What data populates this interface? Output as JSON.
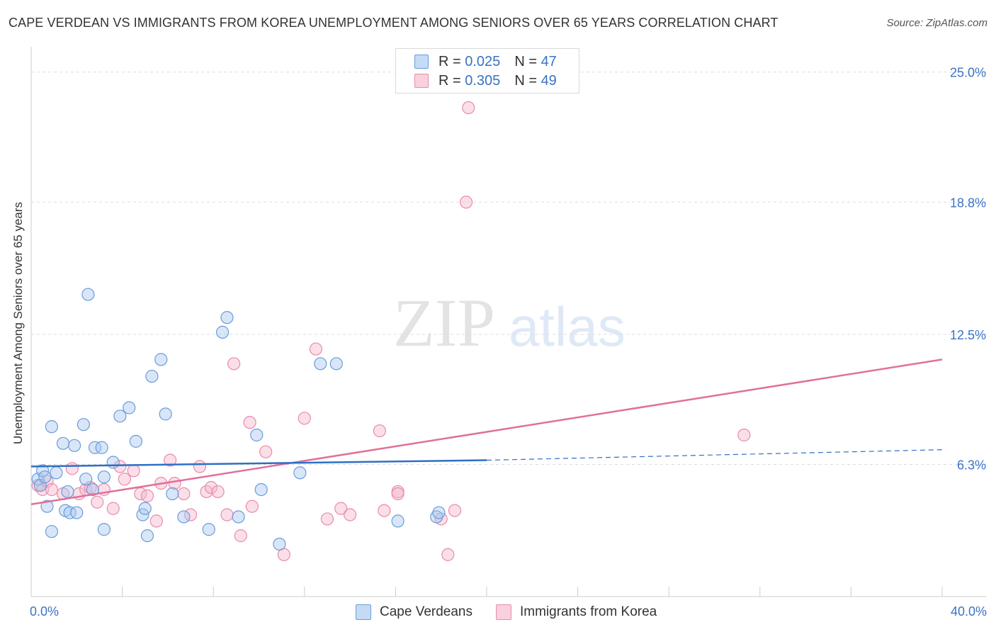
{
  "title": "CAPE VERDEAN VS IMMIGRANTS FROM KOREA UNEMPLOYMENT AMONG SENIORS OVER 65 YEARS CORRELATION CHART",
  "source": "Source: ZipAtlas.com",
  "watermark": {
    "zip": "ZIP",
    "atlas": "atlas"
  },
  "colors": {
    "blue_fill": "#a9c8ee",
    "blue_stroke": "#6a9cdb",
    "blue_line": "#2f6fc4",
    "pink_fill": "#f5b8cb",
    "pink_stroke": "#e98bab",
    "pink_line": "#e0709a",
    "tick_label": "#3b73c4",
    "grid": "#dddddd"
  },
  "legend": {
    "rows": [
      {
        "r_label": "R =",
        "r_value": "0.025",
        "n_label": "N =",
        "n_value": "47"
      },
      {
        "r_label": "R =",
        "r_value": "0.305",
        "n_label": "N =",
        "n_value": "49"
      }
    ]
  },
  "chart_data": {
    "type": "scatter",
    "xlabel": "",
    "ylabel": "Unemployment Among Seniors over 65 years",
    "xlim": [
      0,
      40
    ],
    "ylim": [
      0,
      25.8
    ],
    "x_tick_labels": [
      "0.0%",
      "40.0%"
    ],
    "y_ticks": [
      6.3,
      12.5,
      18.8,
      25.0
    ],
    "y_tick_labels": [
      "6.3%",
      "12.5%",
      "18.8%",
      "25.0%"
    ],
    "legend_position": "top-center",
    "series": [
      {
        "name": "Cape Verdeans",
        "r": 0.025,
        "n": 47,
        "trend": {
          "x0": 0,
          "y0": 6.2,
          "x1": 20,
          "y1": 6.5,
          "x_dash_end": 40,
          "y_dash_end": 7.0
        },
        "points": [
          [
            0.3,
            5.6
          ],
          [
            0.4,
            5.3
          ],
          [
            0.5,
            6.0
          ],
          [
            0.6,
            5.7
          ],
          [
            0.7,
            4.3
          ],
          [
            0.9,
            8.1
          ],
          [
            0.9,
            3.1
          ],
          [
            1.1,
            5.9
          ],
          [
            1.4,
            7.3
          ],
          [
            1.5,
            4.1
          ],
          [
            1.6,
            5.0
          ],
          [
            1.7,
            4.0
          ],
          [
            1.9,
            7.2
          ],
          [
            2.0,
            4.0
          ],
          [
            2.3,
            8.2
          ],
          [
            2.4,
            5.6
          ],
          [
            2.5,
            14.4
          ],
          [
            2.7,
            5.1
          ],
          [
            2.8,
            7.1
          ],
          [
            3.1,
            7.1
          ],
          [
            3.2,
            3.2
          ],
          [
            3.2,
            5.7
          ],
          [
            3.6,
            6.4
          ],
          [
            3.9,
            8.6
          ],
          [
            4.3,
            9.0
          ],
          [
            4.6,
            7.4
          ],
          [
            4.9,
            3.9
          ],
          [
            5.0,
            4.2
          ],
          [
            5.1,
            2.9
          ],
          [
            5.3,
            10.5
          ],
          [
            5.7,
            11.3
          ],
          [
            5.9,
            8.7
          ],
          [
            6.2,
            4.9
          ],
          [
            6.7,
            3.8
          ],
          [
            7.8,
            3.2
          ],
          [
            8.4,
            12.6
          ],
          [
            8.6,
            13.3
          ],
          [
            9.1,
            3.8
          ],
          [
            9.9,
            7.7
          ],
          [
            10.1,
            5.1
          ],
          [
            10.9,
            2.5
          ],
          [
            11.8,
            5.9
          ],
          [
            12.7,
            11.1
          ],
          [
            13.4,
            11.1
          ],
          [
            16.1,
            3.6
          ],
          [
            17.8,
            3.8
          ],
          [
            17.9,
            4.0
          ]
        ]
      },
      {
        "name": "Immigrants from Korea",
        "r": 0.305,
        "n": 49,
        "trend": {
          "x0": 0,
          "y0": 4.4,
          "x1": 40,
          "y1": 11.3
        },
        "points": [
          [
            0.3,
            5.3
          ],
          [
            0.5,
            5.1
          ],
          [
            0.7,
            5.5
          ],
          [
            0.9,
            5.1
          ],
          [
            1.4,
            4.9
          ],
          [
            1.8,
            6.1
          ],
          [
            2.1,
            4.9
          ],
          [
            2.4,
            5.1
          ],
          [
            2.6,
            5.2
          ],
          [
            2.9,
            4.5
          ],
          [
            3.2,
            5.1
          ],
          [
            3.6,
            4.2
          ],
          [
            3.9,
            6.2
          ],
          [
            4.1,
            5.6
          ],
          [
            4.5,
            6.0
          ],
          [
            4.8,
            4.9
          ],
          [
            5.1,
            4.8
          ],
          [
            5.5,
            3.6
          ],
          [
            5.7,
            5.4
          ],
          [
            6.1,
            6.5
          ],
          [
            6.3,
            5.4
          ],
          [
            6.7,
            4.9
          ],
          [
            7.0,
            3.9
          ],
          [
            7.4,
            6.2
          ],
          [
            7.7,
            5.0
          ],
          [
            7.9,
            5.2
          ],
          [
            8.2,
            5.0
          ],
          [
            8.6,
            3.9
          ],
          [
            8.9,
            11.1
          ],
          [
            9.2,
            2.9
          ],
          [
            9.6,
            8.3
          ],
          [
            9.7,
            4.3
          ],
          [
            10.3,
            6.9
          ],
          [
            11.1,
            2.0
          ],
          [
            12.0,
            8.5
          ],
          [
            12.5,
            11.8
          ],
          [
            13.0,
            3.7
          ],
          [
            13.6,
            4.2
          ],
          [
            14.0,
            3.9
          ],
          [
            15.3,
            7.9
          ],
          [
            15.5,
            4.1
          ],
          [
            16.1,
            5.0
          ],
          [
            16.1,
            4.9
          ],
          [
            18.0,
            3.7
          ],
          [
            18.3,
            2.0
          ],
          [
            18.6,
            4.1
          ],
          [
            19.1,
            18.8
          ],
          [
            19.2,
            23.3
          ],
          [
            31.3,
            7.7
          ]
        ]
      }
    ]
  },
  "bottom_legend": {
    "series_1": "Cape Verdeans",
    "series_2": "Immigrants from Korea"
  }
}
